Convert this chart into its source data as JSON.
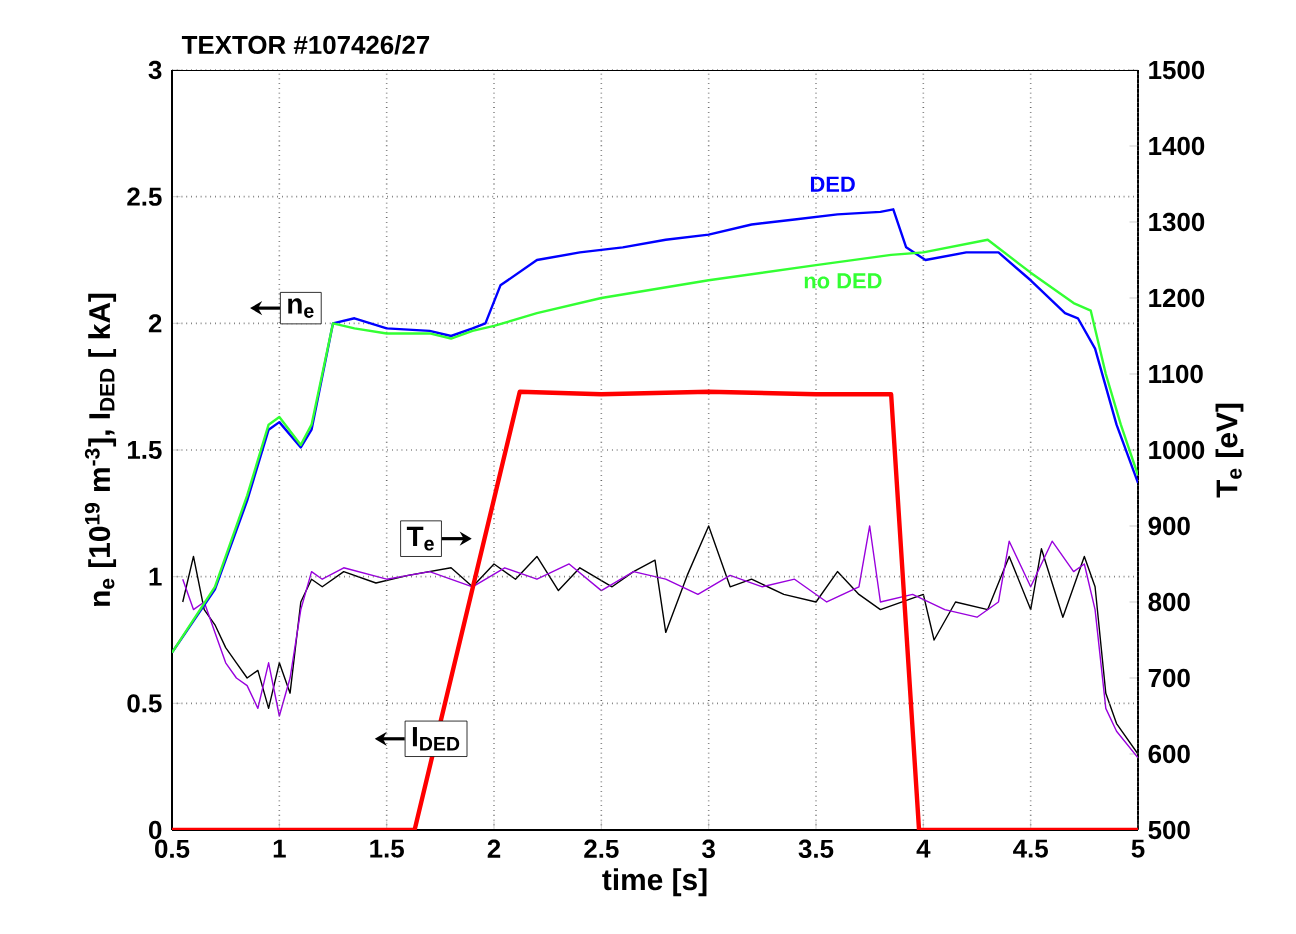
{
  "chart_data": {
    "type": "line",
    "title": "TEXTOR #107426/27",
    "xlabel": "time [s]",
    "ylabel": "n$_{e}$ [10$^{19}$ m$^{-3}$], I$_{DED}$ [ kA]",
    "y2label": "T$_{e}$ [eV]",
    "xlim": [
      0.5,
      5
    ],
    "xticks": [
      0.5,
      1,
      1.5,
      2,
      2.5,
      3,
      3.5,
      4,
      4.5,
      5
    ],
    "ylim": [
      0,
      3
    ],
    "yticks": [
      0,
      0.5,
      1,
      1.5,
      2,
      2.5,
      3
    ],
    "y2lim": [
      500,
      1500
    ],
    "y2ticks": [
      500,
      600,
      700,
      800,
      900,
      1000,
      1100,
      1200,
      1300,
      1400,
      1500
    ],
    "grid": true,
    "annotations": [
      {
        "text": "n$_{e}$",
        "x": 1.1,
        "y": 2.06
      },
      {
        "text": "T$_{e}$",
        "x": 1.66,
        "y": 1.15
      },
      {
        "text": "I$_{DED}$",
        "x": 1.73,
        "y": 0.36
      }
    ],
    "series": [
      {
        "name": "DED",
        "color": "#0000ff",
        "x": [
          0.5,
          0.7,
          0.85,
          0.95,
          1.0,
          1.1,
          1.15,
          1.25,
          1.35,
          1.5,
          1.7,
          1.8,
          1.9,
          1.96,
          2.03,
          2.2,
          2.4,
          2.6,
          2.8,
          3.0,
          3.2,
          3.4,
          3.6,
          3.8,
          3.86,
          3.92,
          4.01,
          4.2,
          4.35,
          4.5,
          4.66,
          4.72,
          4.8,
          4.9,
          5.0
        ],
        "values": [
          0.7,
          0.95,
          1.3,
          1.58,
          1.61,
          1.51,
          1.58,
          2.0,
          2.02,
          1.98,
          1.97,
          1.95,
          1.98,
          2.0,
          2.15,
          2.25,
          2.28,
          2.3,
          2.33,
          2.35,
          2.39,
          2.41,
          2.43,
          2.44,
          2.45,
          2.3,
          2.25,
          2.28,
          2.28,
          2.17,
          2.04,
          2.02,
          1.9,
          1.6,
          1.37
        ]
      },
      {
        "name": "no DED",
        "color": "#33ff33",
        "x": [
          0.5,
          0.7,
          0.85,
          0.95,
          1.0,
          1.1,
          1.15,
          1.25,
          1.35,
          1.5,
          1.7,
          1.8,
          1.9,
          2.0,
          2.2,
          2.5,
          3.0,
          3.5,
          3.85,
          4.0,
          4.3,
          4.5,
          4.7,
          4.78,
          4.85,
          4.92,
          5.0
        ],
        "values": [
          0.7,
          0.96,
          1.32,
          1.6,
          1.63,
          1.52,
          1.6,
          2.0,
          1.98,
          1.96,
          1.96,
          1.94,
          1.97,
          1.99,
          2.04,
          2.1,
          2.17,
          2.23,
          2.27,
          2.28,
          2.33,
          2.2,
          2.08,
          2.05,
          1.8,
          1.6,
          1.4
        ]
      },
      {
        "color": "#ff0000",
        "x": [
          0.5,
          1.63,
          2.12,
          2.5,
          3.0,
          3.5,
          3.85,
          3.98,
          5.0
        ],
        "values": [
          0,
          0,
          1.73,
          1.72,
          1.73,
          1.72,
          1.72,
          0,
          0
        ]
      },
      {
        "color": "#000000",
        "axis": "y2",
        "x": [
          0.55,
          0.6,
          0.65,
          0.7,
          0.75,
          0.8,
          0.85,
          0.9,
          0.95,
          1.0,
          1.05,
          1.1,
          1.15,
          1.2,
          1.3,
          1.45,
          1.6,
          1.8,
          1.9,
          2.0,
          2.1,
          2.2,
          2.3,
          2.4,
          2.55,
          2.65,
          2.75,
          2.8,
          2.9,
          3.0,
          3.1,
          3.2,
          3.35,
          3.5,
          3.6,
          3.7,
          3.8,
          4.0,
          4.05,
          4.15,
          4.3,
          4.4,
          4.5,
          4.55,
          4.65,
          4.75,
          4.8,
          4.85,
          4.9,
          5.0
        ],
        "values": [
          800,
          860,
          790,
          770,
          740,
          720,
          700,
          710,
          660,
          720,
          680,
          800,
          830,
          820,
          840,
          825,
          835,
          845,
          820,
          850,
          830,
          860,
          815,
          845,
          820,
          840,
          855,
          760,
          835,
          900,
          820,
          830,
          810,
          800,
          840,
          810,
          790,
          810,
          750,
          800,
          790,
          860,
          790,
          870,
          780,
          860,
          820,
          680,
          640,
          600
        ]
      },
      {
        "color": "#9900dd",
        "axis": "y2",
        "x": [
          0.55,
          0.6,
          0.65,
          0.7,
          0.75,
          0.8,
          0.85,
          0.9,
          0.95,
          1.0,
          1.05,
          1.1,
          1.15,
          1.2,
          1.3,
          1.5,
          1.7,
          1.9,
          2.05,
          2.2,
          2.35,
          2.5,
          2.65,
          2.8,
          2.95,
          3.1,
          3.25,
          3.4,
          3.55,
          3.7,
          3.75,
          3.8,
          3.95,
          4.1,
          4.25,
          4.35,
          4.4,
          4.5,
          4.6,
          4.7,
          4.75,
          4.8,
          4.85,
          4.9,
          5.0
        ],
        "values": [
          830,
          790,
          800,
          760,
          720,
          700,
          690,
          660,
          720,
          650,
          700,
          790,
          840,
          830,
          845,
          830,
          840,
          820,
          845,
          830,
          850,
          815,
          840,
          830,
          810,
          835,
          820,
          830,
          800,
          820,
          900,
          800,
          810,
          790,
          780,
          800,
          880,
          820,
          880,
          840,
          850,
          790,
          660,
          630,
          595
        ]
      }
    ]
  }
}
